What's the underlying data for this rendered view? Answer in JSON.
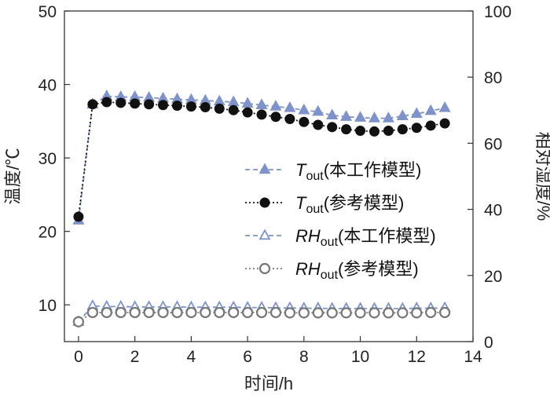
{
  "chart_data": {
    "type": "line",
    "x_axis": {
      "label": "时间/h",
      "range": [
        -0.5,
        14
      ],
      "ticks": [
        0,
        2,
        4,
        6,
        8,
        10,
        12,
        14
      ]
    },
    "y_left": {
      "label": "温度/℃",
      "range": [
        5,
        50
      ],
      "ticks": [
        10,
        20,
        30,
        40,
        50
      ]
    },
    "y_right": {
      "label": "相对湿度/%",
      "range": [
        0,
        100
      ],
      "ticks": [
        0,
        20,
        40,
        60,
        80,
        100
      ]
    },
    "colors": {
      "blue": "#7f93c9",
      "black": "#111111",
      "gray": "#777777"
    },
    "series": [
      {
        "name_main": "T",
        "name_sub": "out",
        "name_suffix": "(本工作模型)",
        "axis": "left",
        "marker": "triangle-filled",
        "line": "dashed",
        "color_key": "blue",
        "x": [
          0,
          0.5,
          1,
          1.5,
          2,
          2.5,
          3,
          3.5,
          4,
          4.5,
          5,
          5.5,
          6,
          6.5,
          7,
          7.5,
          8,
          8.5,
          9,
          9.5,
          10,
          10.5,
          11,
          11.5,
          12,
          12.5,
          13
        ],
        "y": [
          21.5,
          37.3,
          38.4,
          38.3,
          38.3,
          38.2,
          38.1,
          38.0,
          37.9,
          37.8,
          37.7,
          37.6,
          37.4,
          37.2,
          37.0,
          36.8,
          36.5,
          36.3,
          35.8,
          35.6,
          35.5,
          35.4,
          35.4,
          35.7,
          36.0,
          36.4,
          36.8
        ]
      },
      {
        "name_main": "T",
        "name_sub": "out",
        "name_suffix": "(参考模型)",
        "axis": "left",
        "marker": "circle-filled",
        "line": "dotted",
        "color_key": "black",
        "x": [
          0,
          0.5,
          1,
          1.5,
          2,
          2.5,
          3,
          3.5,
          4,
          4.5,
          5,
          5.5,
          6,
          6.5,
          7,
          7.5,
          8,
          8.5,
          9,
          9.5,
          10,
          10.5,
          11,
          11.5,
          12,
          12.5,
          13
        ],
        "y": [
          22.0,
          37.3,
          37.6,
          37.5,
          37.4,
          37.3,
          37.2,
          37.1,
          37.0,
          36.9,
          36.7,
          36.5,
          36.2,
          35.9,
          35.6,
          35.3,
          34.9,
          34.5,
          34.2,
          33.9,
          33.7,
          33.6,
          33.7,
          33.9,
          34.1,
          34.4,
          34.7
        ]
      },
      {
        "name_main": "RH",
        "name_sub": "out",
        "name_suffix": "(本工作模型)",
        "axis": "right",
        "marker": "triangle-open",
        "line": "dashed",
        "color_key": "blue",
        "x": [
          0,
          0.5,
          1,
          1.5,
          2,
          2.5,
          3,
          3.5,
          4,
          4.5,
          5,
          5.5,
          6,
          6.5,
          7,
          7.5,
          8,
          8.5,
          9,
          9.5,
          10,
          10.5,
          11,
          11.5,
          12,
          12.5,
          13
        ],
        "y": [
          6.0,
          10.8,
          10.6,
          10.6,
          10.5,
          10.5,
          10.5,
          10.5,
          10.4,
          10.4,
          10.4,
          10.4,
          10.3,
          10.3,
          10.2,
          10.2,
          10.1,
          10.1,
          10.0,
          10.0,
          10.0,
          10.0,
          10.0,
          10.0,
          10.1,
          10.1,
          10.2
        ]
      },
      {
        "name_main": "RH",
        "name_sub": "out",
        "name_suffix": "(参考模型)",
        "axis": "right",
        "marker": "circle-open",
        "line": "dotted",
        "color_key": "gray",
        "x": [
          0,
          0.5,
          1,
          1.5,
          2,
          2.5,
          3,
          3.5,
          4,
          4.5,
          5,
          5.5,
          6,
          6.5,
          7,
          7.5,
          8,
          8.5,
          9,
          9.5,
          10,
          10.5,
          11,
          11.5,
          12,
          12.5,
          13
        ],
        "y": [
          6.0,
          8.8,
          8.8,
          8.8,
          8.8,
          8.8,
          8.8,
          8.8,
          8.8,
          8.8,
          8.8,
          8.8,
          8.8,
          8.8,
          8.8,
          8.7,
          8.7,
          8.7,
          8.7,
          8.7,
          8.7,
          8.7,
          8.7,
          8.7,
          8.7,
          8.8,
          8.8
        ]
      }
    ],
    "legend": {
      "position": "center-right"
    }
  }
}
